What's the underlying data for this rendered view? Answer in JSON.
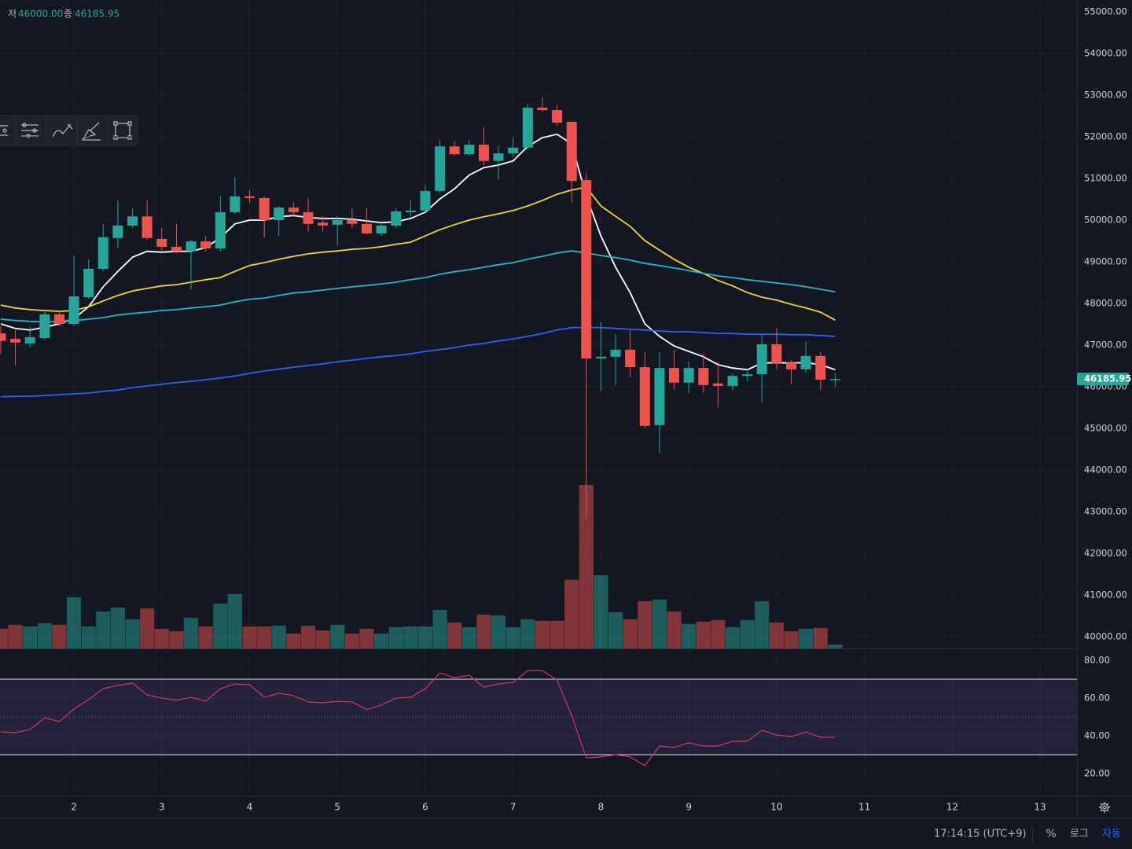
{
  "chart_data": {
    "type": "candlestick",
    "x": [
      1.167,
      1.333,
      1.5,
      1.667,
      1.833,
      2,
      2.167,
      2.333,
      2.5,
      2.667,
      2.833,
      3,
      3.167,
      3.333,
      3.5,
      3.667,
      3.833,
      4,
      4.167,
      4.333,
      4.5,
      4.667,
      4.833,
      5,
      5.167,
      5.333,
      5.5,
      5.667,
      5.833,
      6,
      6.167,
      6.333,
      6.5,
      6.667,
      6.833,
      7,
      7.167,
      7.333,
      7.5,
      7.667,
      7.833,
      8,
      8.167,
      8.333,
      8.5,
      8.667,
      8.833,
      9,
      9.167,
      9.333,
      9.5,
      9.667,
      9.833,
      10,
      10.167,
      10.333,
      10.5,
      10.667
    ],
    "open": [
      47280,
      47150,
      47040,
      47170,
      47740,
      47510,
      48150,
      48830,
      49570,
      49870,
      50090,
      49550,
      49360,
      49250,
      49490,
      49320,
      50190,
      50570,
      50530,
      50000,
      50300,
      50190,
      49940,
      49890,
      50000,
      49910,
      49680,
      49870,
      50190,
      50230,
      50700,
      51770,
      51580,
      51810,
      51420,
      51600,
      51740,
      52700,
      52640,
      52360,
      50960,
      46680,
      46720,
      46890,
      46470,
      45080,
      46450,
      46100,
      46450,
      46080,
      46020,
      46260,
      46300,
      47020,
      46580,
      46420,
      46740,
      46170
    ],
    "high": [
      47450,
      47360,
      47450,
      47830,
      47830,
      49150,
      49060,
      49910,
      50470,
      50280,
      50470,
      49810,
      49910,
      49530,
      49620,
      50570,
      51040,
      50720,
      50570,
      50340,
      50420,
      50530,
      50090,
      50090,
      50280,
      50280,
      49960,
      50280,
      50470,
      50850,
      51920,
      51890,
      51920,
      52230,
      51790,
      51980,
      52790,
      52940,
      52770,
      52380,
      51130,
      47550,
      47260,
      47360,
      46830,
      46830,
      46890,
      46600,
      46790,
      46600,
      46320,
      46420,
      47260,
      47420,
      46640,
      47080,
      46830,
      46320
    ],
    "low": [
      46790,
      46510,
      46940,
      47130,
      47450,
      47450,
      48110,
      48770,
      49340,
      49810,
      49530,
      49280,
      49210,
      48340,
      49250,
      49250,
      50150,
      50420,
      49590,
      49620,
      50090,
      49720,
      49720,
      49400,
      49810,
      49660,
      49620,
      49810,
      50090,
      50190,
      50660,
      51550,
      51550,
      51320,
      50980,
      51510,
      51700,
      52600,
      52260,
      50420,
      42830,
      45910,
      46040,
      46230,
      45000,
      44400,
      45940,
      45850,
      45850,
      45510,
      45910,
      46130,
      45620,
      46420,
      46060,
      46320,
      45910,
      46000
    ],
    "close": [
      47100,
      47060,
      47190,
      47740,
      47510,
      48170,
      48830,
      49590,
      49870,
      50090,
      49570,
      49360,
      49250,
      49490,
      49320,
      50190,
      50570,
      50530,
      50000,
      50300,
      50190,
      49910,
      49870,
      50000,
      49910,
      49680,
      49870,
      50210,
      50230,
      50700,
      51770,
      51580,
      51810,
      51420,
      51600,
      51740,
      52700,
      52640,
      52340,
      50940,
      46680,
      46720,
      46890,
      46470,
      45060,
      46450,
      46100,
      46450,
      46040,
      46020,
      46260,
      46300,
      47020,
      46570,
      46420,
      46740,
      46170,
      46185.95
    ],
    "volume": [
      25,
      30,
      28,
      32,
      30,
      65,
      28,
      47,
      52,
      37,
      51,
      25,
      22,
      39,
      28,
      57,
      69,
      28,
      28,
      29,
      19,
      29,
      23,
      30,
      19,
      25,
      19,
      27,
      28,
      28,
      49,
      33,
      27,
      43,
      42,
      27,
      37,
      35,
      35,
      87,
      207,
      93,
      46,
      37,
      60,
      62,
      47,
      31,
      34,
      36,
      27,
      36,
      60,
      33,
      22,
      25,
      26,
      5
    ],
    "up_color": "#26a69a",
    "down_color": "#ef5350",
    "overlays": [
      {
        "color": "#ffffff",
        "values": [
          47510,
          47400,
          47360,
          47430,
          47510,
          47640,
          47920,
          48400,
          48770,
          49110,
          49250,
          49230,
          49250,
          49250,
          49340,
          49580,
          49910,
          50000,
          50000,
          50080,
          50110,
          50060,
          50040,
          50040,
          50020,
          49980,
          49940,
          49960,
          50040,
          50190,
          50510,
          50750,
          51080,
          51260,
          51320,
          51420,
          51770,
          51980,
          52060,
          51830,
          50570,
          49620,
          48870,
          48260,
          47510,
          47210,
          46980,
          46850,
          46720,
          46530,
          46450,
          46410,
          46570,
          46580,
          46570,
          46580,
          46530,
          46410
        ]
      },
      {
        "color": "#f5d33a",
        "values": [
          47960,
          47890,
          47850,
          47830,
          47810,
          47830,
          47920,
          48060,
          48190,
          48300,
          48360,
          48420,
          48450,
          48510,
          48570,
          48620,
          48770,
          48910,
          48980,
          49060,
          49130,
          49190,
          49230,
          49260,
          49300,
          49320,
          49360,
          49420,
          49470,
          49620,
          49770,
          49890,
          50000,
          50080,
          50150,
          50230,
          50340,
          50470,
          50620,
          50720,
          50790,
          50340,
          50090,
          49850,
          49510,
          49280,
          49060,
          48870,
          48720,
          48550,
          48420,
          48260,
          48150,
          48080,
          47980,
          47890,
          47790,
          47600
        ]
      },
      {
        "color": "#22b8cf",
        "values": [
          47620,
          47590,
          47570,
          47550,
          47570,
          47590,
          47620,
          47660,
          47720,
          47760,
          47790,
          47830,
          47850,
          47890,
          47920,
          47960,
          48040,
          48100,
          48130,
          48190,
          48250,
          48280,
          48320,
          48360,
          48400,
          48430,
          48470,
          48510,
          48570,
          48620,
          48700,
          48760,
          48810,
          48870,
          48930,
          48980,
          49060,
          49130,
          49210,
          49260,
          49210,
          49150,
          49100,
          49040,
          48960,
          48910,
          48850,
          48790,
          48720,
          48660,
          48620,
          48570,
          48530,
          48490,
          48450,
          48400,
          48340,
          48280
        ]
      },
      {
        "color": "#2f5ef0",
        "values": [
          45760,
          45770,
          45770,
          45790,
          45810,
          45830,
          45850,
          45890,
          45920,
          45980,
          46020,
          46060,
          46100,
          46130,
          46170,
          46210,
          46260,
          46320,
          46380,
          46420,
          46470,
          46510,
          46550,
          46600,
          46640,
          46680,
          46720,
          46750,
          46790,
          46850,
          46890,
          46940,
          47000,
          47040,
          47100,
          47150,
          47210,
          47280,
          47360,
          47420,
          47420,
          47420,
          47400,
          47380,
          47360,
          47340,
          47320,
          47320,
          47300,
          47280,
          47280,
          47260,
          47260,
          47260,
          47250,
          47250,
          47230,
          47210
        ]
      }
    ],
    "xlim": [
      1.158,
      13.42
    ],
    "xticks": [
      2,
      3,
      4,
      5,
      6,
      7,
      8,
      9,
      10,
      11,
      12,
      13
    ],
    "ylim": [
      39717,
      55283
    ],
    "yticks": [
      {
        "value": 40000,
        "label": "40000.00"
      },
      {
        "value": 41000,
        "label": "41000.00"
      },
      {
        "value": 42000,
        "label": "42000.00"
      },
      {
        "value": 43000,
        "label": "43000.00"
      },
      {
        "value": 44000,
        "label": "44000.00"
      },
      {
        "value": 45000,
        "label": "45000.00"
      },
      {
        "value": 46000,
        "label": "46000.00"
      },
      {
        "value": 47000,
        "label": "47000.00"
      },
      {
        "value": 48000,
        "label": "48000.00"
      },
      {
        "value": 49000,
        "label": "49000.00"
      },
      {
        "value": 50000,
        "label": "50000.00"
      },
      {
        "value": 51000,
        "label": "51000.00"
      },
      {
        "value": 52000,
        "label": "52000.00"
      },
      {
        "value": 53000,
        "label": "53000.00"
      },
      {
        "value": 54000,
        "label": "54000.00"
      },
      {
        "value": 55000,
        "label": "55000.00"
      }
    ],
    "grid": true,
    "legend": [
      {
        "label": "저",
        "value": "46000.00"
      },
      {
        "label": "종",
        "value": "46185.95"
      }
    ],
    "rsi": {
      "color": "#d9365e",
      "band": [
        30,
        70
      ],
      "midline": 50,
      "ylim": [
        7.92,
        86.25
      ],
      "yticks": [
        {
          "value": 20,
          "label": "20.00"
        },
        {
          "value": 40,
          "label": "40.00"
        },
        {
          "value": 60,
          "label": "60.00"
        },
        {
          "value": 80,
          "label": "80.00"
        }
      ],
      "values": [
        42.1,
        41.7,
        43.3,
        49.6,
        47.5,
        54.2,
        59.2,
        65,
        66.7,
        67.9,
        61.7,
        60,
        58.8,
        60.4,
        58.3,
        65,
        67.5,
        67.1,
        60.4,
        62.5,
        61.3,
        57.9,
        57.5,
        58.3,
        57.9,
        53.8,
        56.3,
        60,
        60.4,
        65,
        73.3,
        70.8,
        72.1,
        65.8,
        67.5,
        68.3,
        74.6,
        74.6,
        69.6,
        50.8,
        28.3,
        28.8,
        30,
        28.8,
        24.2,
        34.6,
        33.8,
        36.3,
        34.6,
        34.6,
        37.1,
        37.1,
        42.9,
        40.4,
        39.6,
        42.1,
        39.2,
        39.2
      ]
    }
  },
  "status_bar": {
    "time": "17:14:15 (UTC+9)",
    "buttons": [
      "%",
      "로그",
      "자동"
    ]
  }
}
